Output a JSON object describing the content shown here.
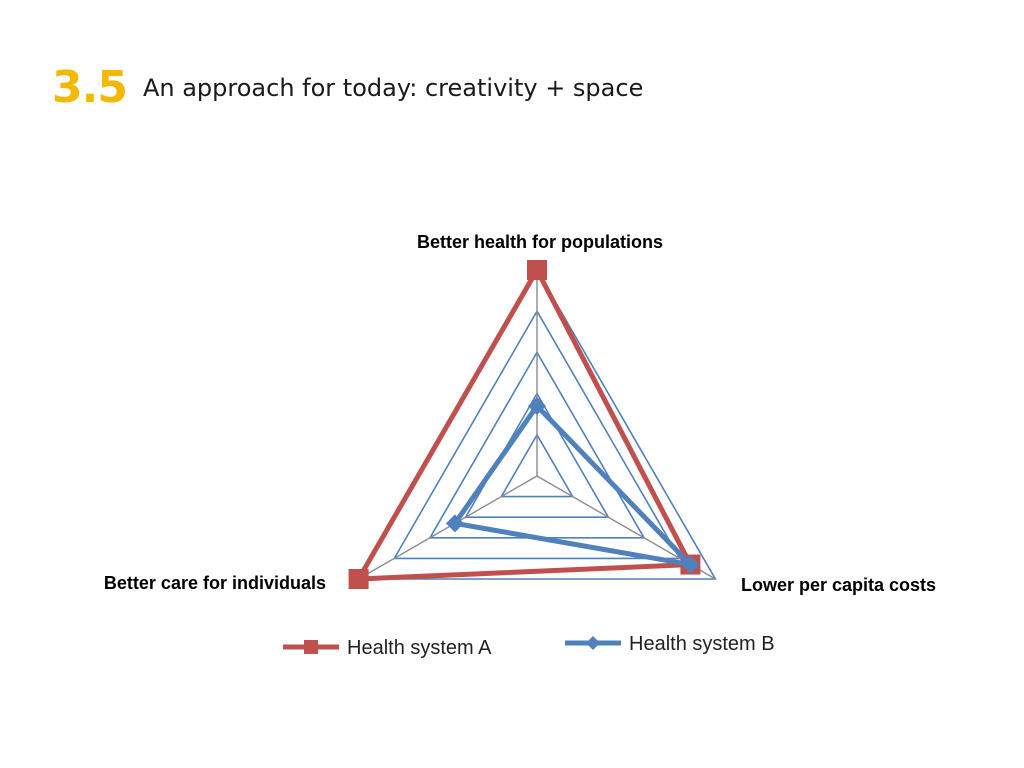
{
  "slide": {
    "number": "3.5",
    "title": "An approach for today: creativity + space",
    "number_color": "#f5b800"
  },
  "chart_data": {
    "type": "radar",
    "title": "",
    "axes": [
      "Better health for populations",
      "Lower per capita costs",
      "Better care for individuals"
    ],
    "rlim": [
      0,
      5
    ],
    "rings": 5,
    "grid": true,
    "legend_position": "bottom",
    "series": [
      {
        "name": "Health system A",
        "values": [
          5,
          4.3,
          5
        ],
        "color": "#c0504d",
        "marker": "square"
      },
      {
        "name": "Health system B",
        "values": [
          1.7,
          4.3,
          2.3
        ],
        "color": "#4f81bd",
        "marker": "diamond"
      }
    ],
    "colors": {
      "ring": "#4f81bd",
      "spoke": "#8c8c8c"
    }
  }
}
